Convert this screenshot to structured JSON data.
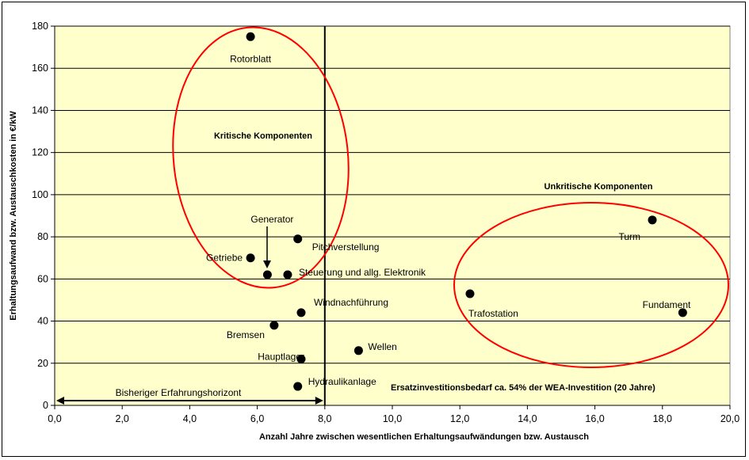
{
  "chart_data": {
    "type": "scatter",
    "title": "",
    "xlabel": "Anzahl Jahre zwischen wesentlichen Erhaltungsaufwändungen bzw. Austausch",
    "ylabel": "Erhaltungsaufwand bzw. Austauschkosten in €/kW",
    "xlim": [
      0,
      20
    ],
    "ylim": [
      0,
      180
    ],
    "x_ticks": [
      "0,0",
      "2,0",
      "4,0",
      "6,0",
      "8,0",
      "10,0",
      "12,0",
      "14,0",
      "16,0",
      "18,0",
      "20,0"
    ],
    "y_ticks": [
      "0",
      "20",
      "40",
      "60",
      "80",
      "100",
      "120",
      "140",
      "160",
      "180"
    ],
    "grid": "horizontal",
    "background": "#ffffcc",
    "point_color": "#000000",
    "ellipse_color": "#ff0000",
    "points": [
      {
        "label": "Rotorblatt",
        "x": 5.8,
        "y": 175
      },
      {
        "label": "Pitchverstellung",
        "x": 7.2,
        "y": 79
      },
      {
        "label": "Getriebe",
        "x": 5.8,
        "y": 70
      },
      {
        "label": "Generator",
        "x": 6.3,
        "y": 62
      },
      {
        "label": "Steuerung und allg. Elektronik",
        "x": 6.9,
        "y": 62
      },
      {
        "label": "Windnachführung",
        "x": 7.3,
        "y": 44
      },
      {
        "label": "Bremsen",
        "x": 6.5,
        "y": 38
      },
      {
        "label": "Hauptlager",
        "x": 7.3,
        "y": 22
      },
      {
        "label": "Hydraulikanlage",
        "x": 7.2,
        "y": 9
      },
      {
        "label": "Wellen",
        "x": 9.0,
        "y": 26
      },
      {
        "label": "Trafostation",
        "x": 12.3,
        "y": 53
      },
      {
        "label": "Turm",
        "x": 17.7,
        "y": 88
      },
      {
        "label": "Fundament",
        "x": 18.6,
        "y": 44
      }
    ],
    "vertical_line_x": 8.0,
    "annotations": {
      "critical": "Kritische Komponenten",
      "uncritical": "Unkritische Komponenten",
      "horizon": "Bisheriger Erfahrungshorizont",
      "invest": "Ersatzinvestitionsbedarf ca. 54% der WEA-Investition (20 Jahre)"
    }
  }
}
